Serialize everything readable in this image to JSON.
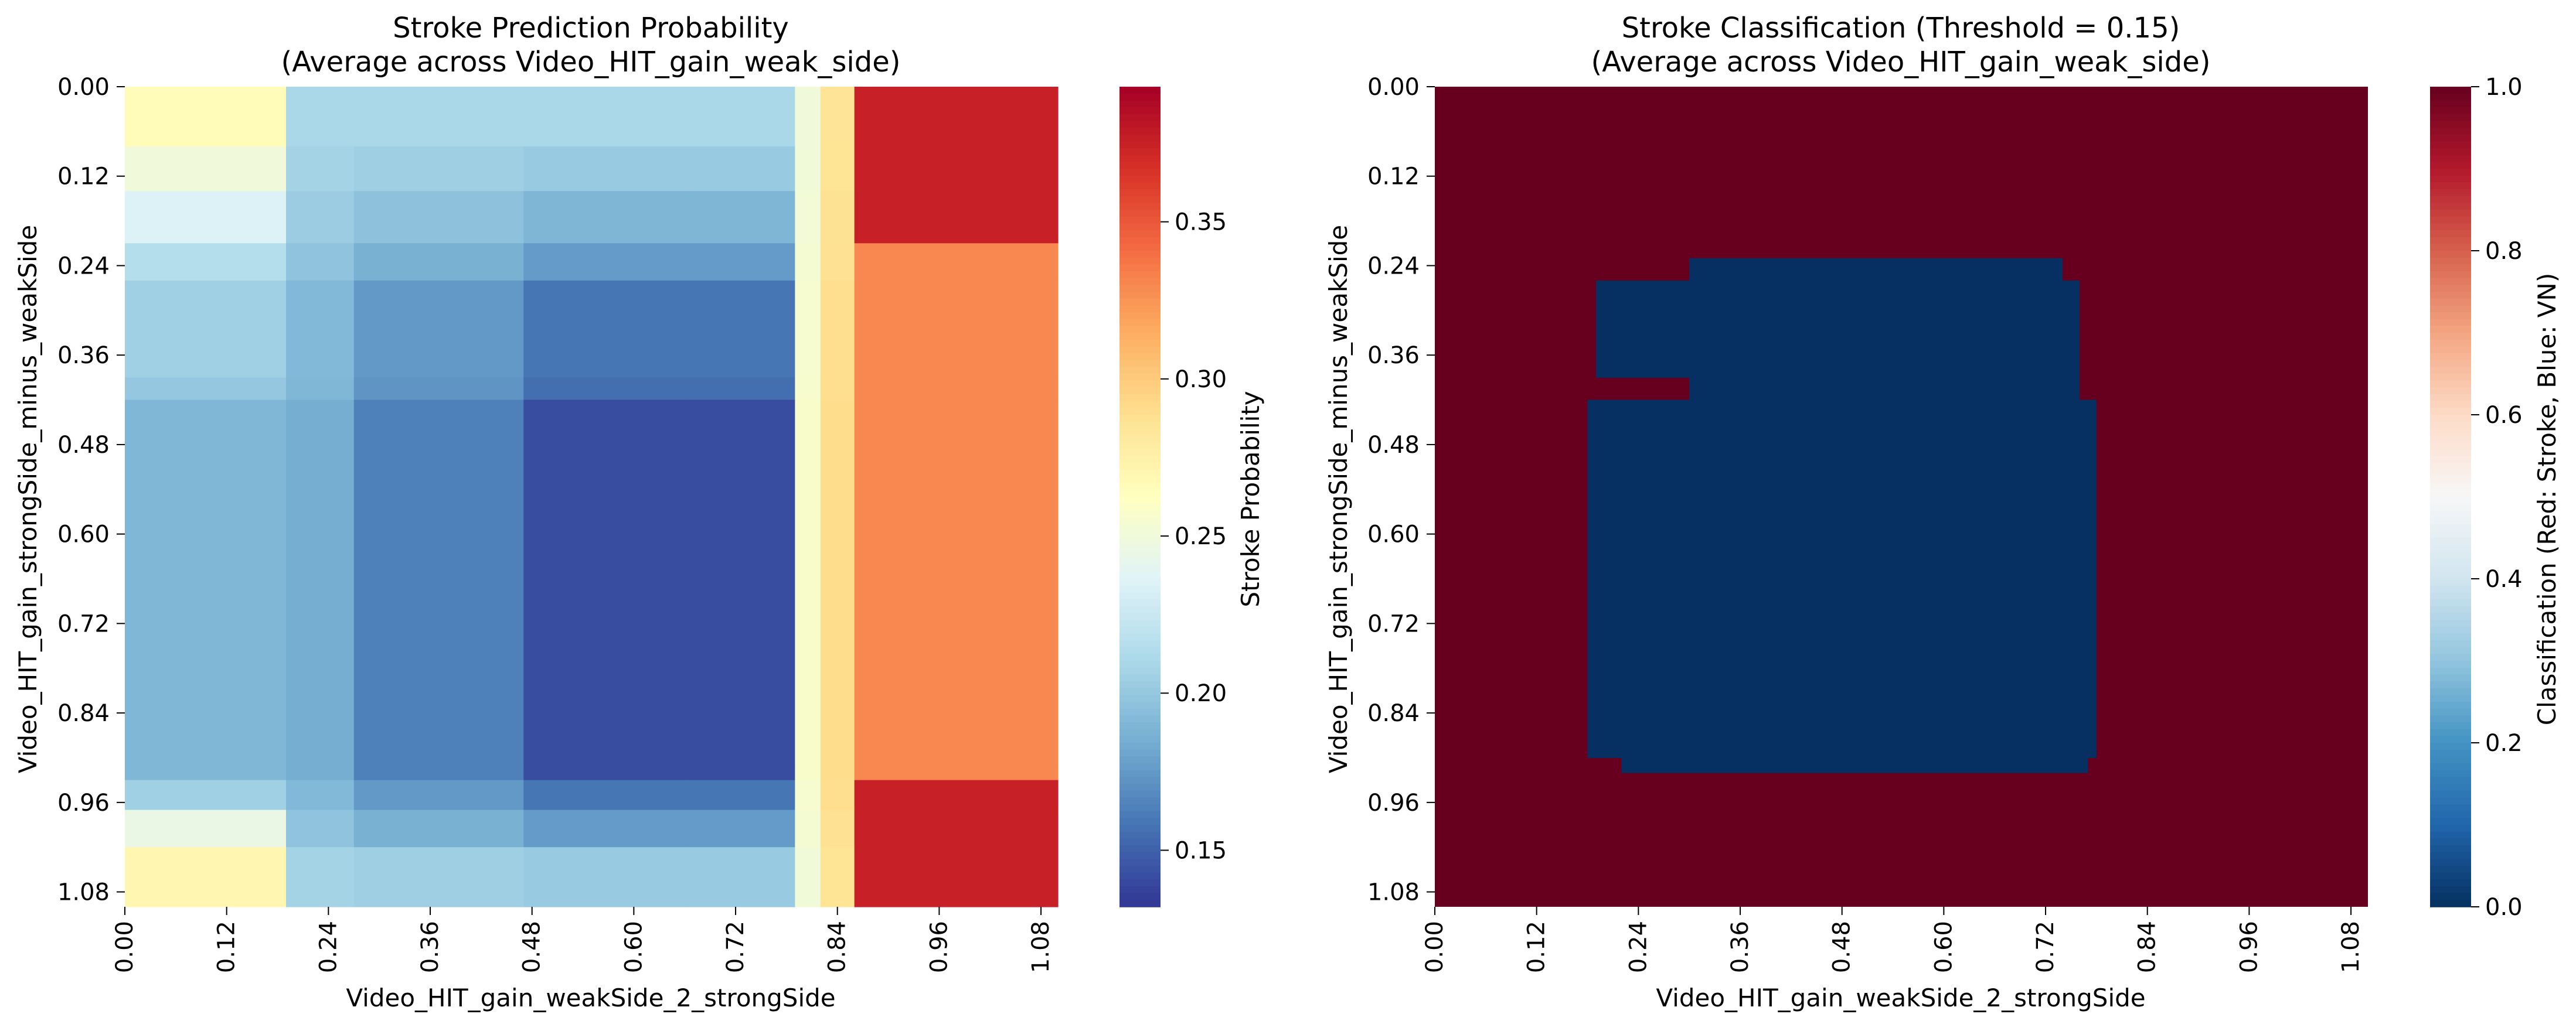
{
  "figure": {
    "background": "#ffffff"
  },
  "chart_data": [
    {
      "type": "heatmap",
      "title": "Stroke Prediction Probability",
      "subtitle": "(Average across Video_HIT_gain_weak_side)",
      "xlabel": "Video_HIT_gain_weakSide_2_strongSide",
      "ylabel": "Video_HIT_gain_strongSide_minus_weakSide",
      "colorbar_label": "Stroke Probability",
      "colormap": "RdYlBu_r",
      "x_ticks": [
        "0.00",
        "0.12",
        "0.24",
        "0.36",
        "0.48",
        "0.60",
        "0.72",
        "0.84",
        "0.96",
        "1.08"
      ],
      "y_ticks": [
        "0.00",
        "0.12",
        "0.24",
        "0.36",
        "0.48",
        "0.60",
        "0.72",
        "0.84",
        "0.96",
        "1.08"
      ],
      "x_range": [
        0.0,
        1.1
      ],
      "y_range": [
        0.0,
        1.1
      ],
      "y_inverted": true,
      "colorbar_ticks": [
        "0.15",
        "0.20",
        "0.25",
        "0.30",
        "0.35"
      ],
      "colorbar_range": [
        0.132,
        0.393
      ],
      "x_breaks": [
        0.0,
        0.19,
        0.27,
        0.47,
        0.66,
        0.79,
        0.82,
        0.86,
        1.1
      ],
      "x_profile": [
        0.0,
        0.08,
        0.15,
        0.22,
        0.22,
        0.15,
        0.5,
        1.0
      ],
      "y_breaks": [
        0.0,
        0.08,
        0.14,
        0.21,
        0.26,
        0.39,
        0.42,
        0.91,
        0.93,
        0.97,
        1.02,
        1.1
      ],
      "y_profile": [
        0.0,
        0.05,
        0.12,
        0.2,
        0.3,
        0.32,
        0.4,
        0.4,
        0.3,
        0.2,
        0.05
      ],
      "x_edge_values": [
        0.265,
        0.25,
        0.285,
        0.36
      ],
      "y_edge_values": [
        0.265,
        0.25,
        0.235,
        0.215,
        0.205,
        0.2,
        0.19,
        0.19,
        0.205,
        0.245,
        0.27
      ]
    },
    {
      "type": "heatmap",
      "title": "Stroke Classification (Threshold = 0.15)",
      "subtitle": "(Average across Video_HIT_gain_weak_side)",
      "xlabel": "Video_HIT_gain_weakSide_2_strongSide",
      "ylabel": "Video_HIT_gain_strongSide_minus_weakSide",
      "colorbar_label": "Classification (Red: Stroke, Blue: VN)",
      "colormap": "RdBu_r",
      "x_ticks": [
        "0.00",
        "0.12",
        "0.24",
        "0.36",
        "0.48",
        "0.60",
        "0.72",
        "0.84",
        "0.96",
        "1.08"
      ],
      "y_ticks": [
        "0.00",
        "0.12",
        "0.24",
        "0.36",
        "0.48",
        "0.60",
        "0.72",
        "0.84",
        "0.96",
        "1.08"
      ],
      "x_range": [
        0.0,
        1.1
      ],
      "y_range": [
        0.0,
        1.1
      ],
      "y_inverted": true,
      "colorbar_ticks": [
        "0.0",
        "0.2",
        "0.4",
        "0.6",
        "0.8",
        "1.0"
      ],
      "colorbar_range": [
        0.0,
        1.0
      ],
      "background_value": 1.0,
      "region_value": 0.0,
      "blue_region_rows": [
        {
          "y": [
            0.23,
            0.26
          ],
          "x": [
            0.3,
            0.74
          ]
        },
        {
          "y": [
            0.26,
            0.39
          ],
          "x": [
            0.19,
            0.76
          ]
        },
        {
          "y": [
            0.39,
            0.42
          ],
          "x": [
            0.3,
            0.76
          ]
        },
        {
          "y": [
            0.42,
            0.9
          ],
          "x": [
            0.18,
            0.78
          ]
        },
        {
          "y": [
            0.9,
            0.92
          ],
          "x": [
            0.22,
            0.77
          ]
        }
      ]
    }
  ]
}
